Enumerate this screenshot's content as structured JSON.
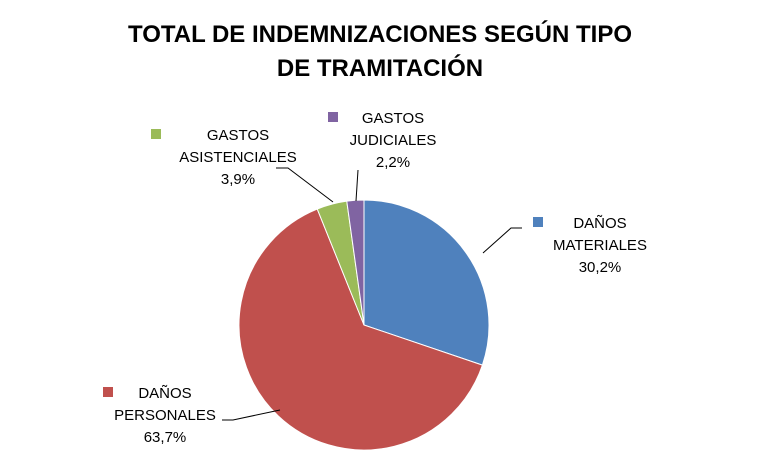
{
  "chart_data": {
    "type": "pie",
    "title_lines": [
      "TOTAL DE INDEMNIZACIONES SEGÚN TIPO",
      "DE TRAMITACIÓN"
    ],
    "slices": [
      {
        "label_lines": [
          "DAÑOS",
          "MATERIALES"
        ],
        "value": 30.2,
        "value_label": "30,2%",
        "color": "#4F81BD"
      },
      {
        "label_lines": [
          "DAÑOS",
          "PERSONALES"
        ],
        "value": 63.7,
        "value_label": "63,7%",
        "color": "#C0504D"
      },
      {
        "label_lines": [
          "GASTOS",
          "ASISTENCIALES"
        ],
        "value": 3.9,
        "value_label": "3,9%",
        "color": "#9BBB59"
      },
      {
        "label_lines": [
          "GASTOS",
          "JUDICIALES"
        ],
        "value": 2.2,
        "value_label": "2,2%",
        "color": "#8064A2"
      }
    ],
    "start_angle": "12 o'clock",
    "direction": "clockwise",
    "labels": "outside with leader lines"
  }
}
